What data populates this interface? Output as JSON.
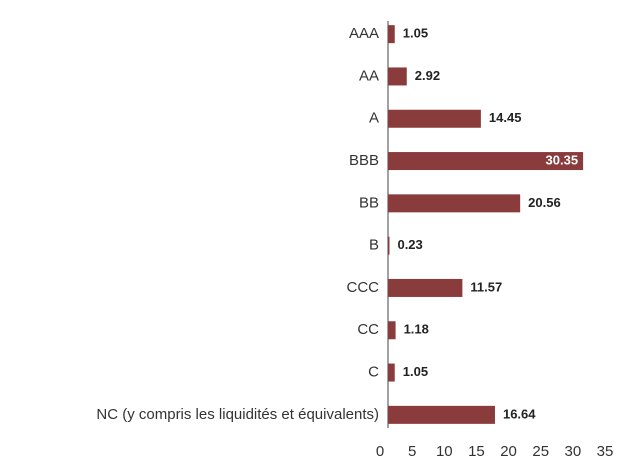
{
  "chart_data": {
    "type": "bar",
    "orientation": "horizontal",
    "categories": [
      "AAA",
      "AA",
      "A",
      "BBB",
      "BB",
      "B",
      "CCC",
      "CC",
      "C",
      "NC (y compris les liquidités et équivalents)"
    ],
    "values": [
      1.05,
      2.92,
      14.45,
      30.35,
      20.56,
      0.23,
      11.57,
      1.18,
      1.05,
      16.64
    ],
    "color": "#8a3b3b",
    "xlim": [
      0,
      35
    ],
    "xticks": [
      0,
      5,
      10,
      15,
      20,
      25,
      30,
      35
    ],
    "grid": false
  }
}
